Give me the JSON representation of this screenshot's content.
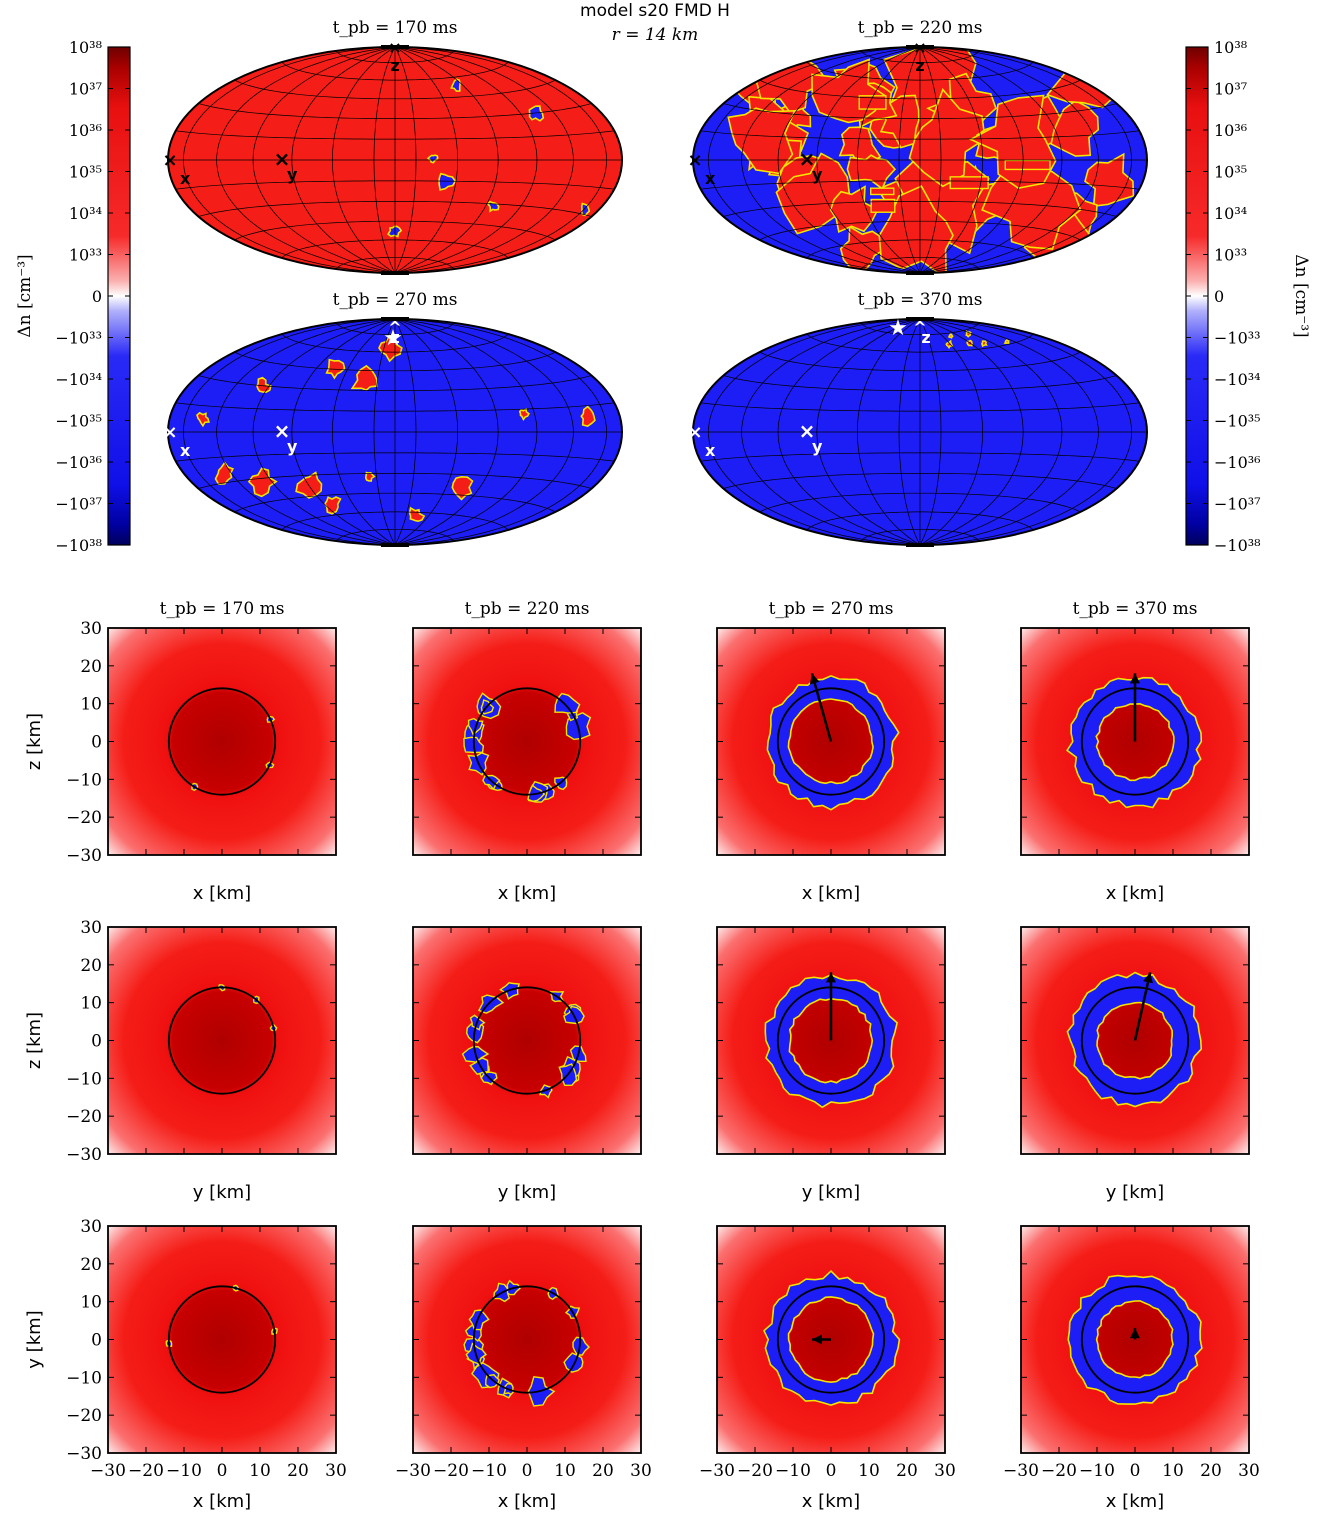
{
  "header": {
    "model_label": "model s20 FMD H",
    "radius_label": "r = 14 km"
  },
  "colorbar": {
    "label": "Δn [cm⁻³]",
    "ticks": [
      "10³⁸",
      "10³⁷",
      "10³⁶",
      "10³⁵",
      "10³⁴",
      "10³³",
      "0",
      "−10³³",
      "−10³⁴",
      "−10³⁵",
      "−10³⁶",
      "−10³⁷",
      "−10³⁸"
    ],
    "colors": {
      "pos_max": "#7b0000",
      "pos": "#f51d17",
      "zero": "#ffffff",
      "neg": "#1d1df5",
      "neg_max": "#00005a",
      "contour": "#f5e400"
    }
  },
  "time_labels": [
    "t_pb = 170 ms",
    "t_pb = 220 ms",
    "t_pb = 270 ms",
    "t_pb = 370 ms"
  ],
  "axis_markers": [
    "x",
    "y",
    "z"
  ],
  "chart_data": [
    {
      "type": "heatmap",
      "projection": "hammer-aitoff",
      "panels": [
        {
          "time_ms": 170,
          "dominant_sign": "positive",
          "negative_patch_fraction": 0.02
        },
        {
          "time_ms": 220,
          "dominant_sign": "mixed",
          "negative_patch_fraction": 0.55
        },
        {
          "time_ms": 270,
          "dominant_sign": "negative",
          "negative_patch_fraction": 0.9
        },
        {
          "time_ms": 370,
          "dominant_sign": "negative",
          "negative_patch_fraction": 0.995
        }
      ]
    },
    {
      "type": "heatmap",
      "slices": [
        {
          "plane": "x-z",
          "xlabel": "x [km]",
          "ylabel": "z [km]"
        },
        {
          "plane": "y-z",
          "xlabel": "y [km]",
          "ylabel": "z [km]"
        },
        {
          "plane": "x-y",
          "xlabel": "x [km]",
          "ylabel": "y [km]"
        }
      ],
      "xlim": [
        -30,
        30
      ],
      "ylim": [
        -30,
        30
      ],
      "ticks": [
        -30,
        -20,
        -10,
        0,
        10,
        20,
        30
      ],
      "tick_labels": [
        "−30",
        "−20",
        "−10",
        "0",
        "10",
        "20",
        "30"
      ],
      "sphere_radius_km": 14,
      "times_ms": [
        170,
        220,
        270,
        370
      ],
      "shell_inner_km": [
        14,
        14,
        11,
        10
      ],
      "shell_outer_km": [
        14,
        14,
        17,
        17
      ],
      "vectors_km": [
        [
          null,
          null,
          [
            -5,
            18
          ],
          [
            0,
            18
          ]
        ],
        [
          null,
          null,
          [
            0,
            18
          ],
          [
            4,
            18
          ]
        ],
        [
          null,
          null,
          [
            -5,
            0
          ],
          [
            0,
            3
          ]
        ]
      ]
    }
  ]
}
